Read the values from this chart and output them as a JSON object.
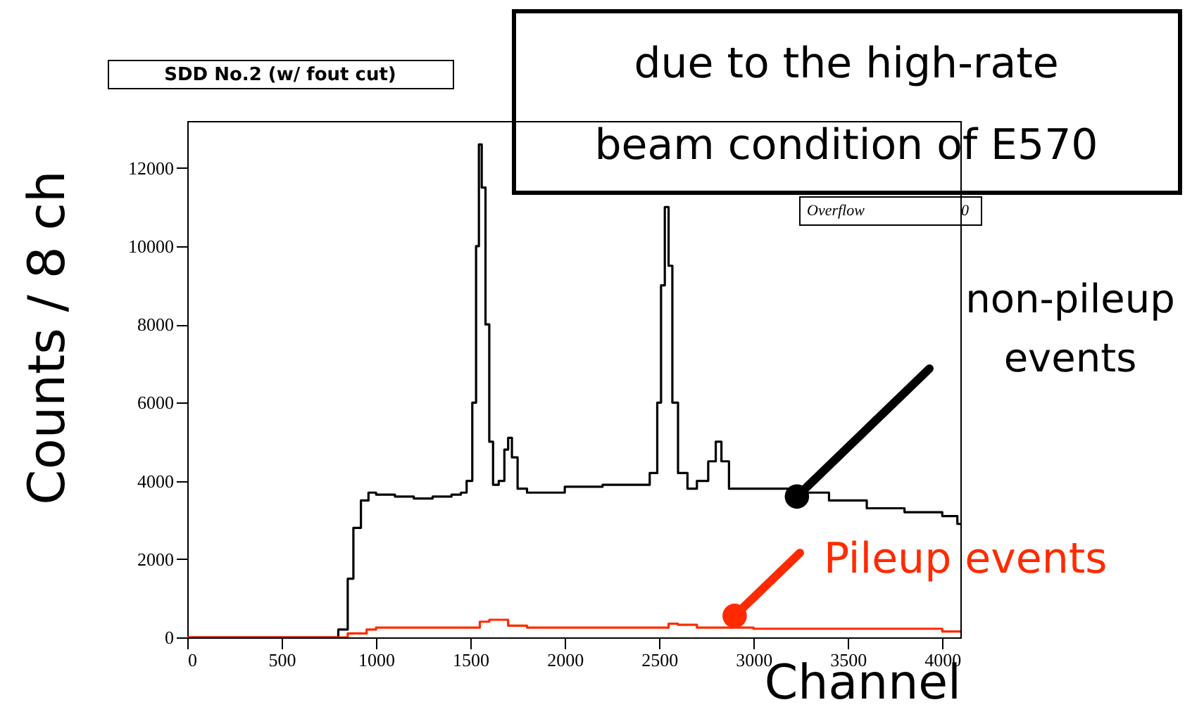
{
  "chart_data": {
    "type": "step",
    "title": "SDD No.2  (w/ fout cut)",
    "xlabel": "Channel",
    "ylabel": "Counts / 8 ch",
    "xlim": [
      0,
      4096
    ],
    "ylim": [
      0,
      13200
    ],
    "xticks": [
      0,
      500,
      1000,
      1500,
      2000,
      2500,
      3000,
      3500,
      4000
    ],
    "yticks": [
      0,
      2000,
      4000,
      6000,
      8000,
      10000,
      12000
    ],
    "grid": false,
    "series": [
      {
        "color": "#000000",
        "x": [
          0,
          780,
          800,
          850,
          880,
          920,
          960,
          1000,
          1100,
          1200,
          1300,
          1400,
          1450,
          1480,
          1510,
          1530,
          1545,
          1560,
          1580,
          1600,
          1620,
          1650,
          1680,
          1700,
          1720,
          1750,
          1800,
          2000,
          2200,
          2400,
          2450,
          2490,
          2510,
          2530,
          2550,
          2570,
          2600,
          2650,
          2700,
          2760,
          2800,
          2830,
          2870,
          3000,
          3200,
          3400,
          3600,
          3800,
          4000,
          4080,
          4096
        ],
        "values": [
          0,
          0,
          200,
          1500,
          2800,
          3500,
          3700,
          3650,
          3600,
          3550,
          3600,
          3650,
          3700,
          4000,
          6000,
          10000,
          12600,
          11500,
          8000,
          5000,
          3900,
          4000,
          4800,
          5100,
          4600,
          3800,
          3700,
          3850,
          3900,
          3900,
          4200,
          6000,
          9000,
          11000,
          9500,
          6000,
          4200,
          3800,
          4000,
          4500,
          5000,
          4500,
          3800,
          3800,
          3700,
          3500,
          3300,
          3200,
          3100,
          2900,
          2900
        ]
      },
      {
        "color": "#ff2a00",
        "x": [
          0,
          800,
          850,
          950,
          1000,
          1500,
          1550,
          1600,
          1700,
          1800,
          2500,
          2550,
          2600,
          2700,
          3000,
          4000,
          4096
        ],
        "values": [
          0,
          0,
          100,
          200,
          250,
          250,
          400,
          450,
          300,
          250,
          250,
          350,
          320,
          250,
          220,
          150,
          150
        ]
      }
    ],
    "annotations": [
      "due to the high-rate\nbeam condition of E570",
      "Overflow",
      "0",
      {
        "text": "non-pileup\nevents",
        "x": 3230,
        "y": 3600
      },
      {
        "text": "Pileup events",
        "x": 2900,
        "y": 550
      }
    ]
  }
}
